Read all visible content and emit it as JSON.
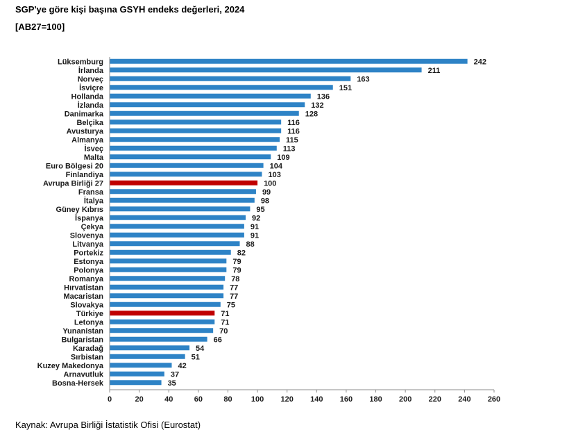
{
  "header": {
    "title": "SGP'ye göre kişi başına GSYH endeks değerleri, 2024",
    "subtitle": "[AB27=100]"
  },
  "footer": {
    "source": "Kaynak: Avrupa Birliği İstatistik Ofisi (Eurostat)"
  },
  "chart_data": {
    "type": "bar",
    "orientation": "horizontal",
    "title": "SGP'ye göre kişi başına GSYH endeks değerleri, 2024",
    "subtitle": "[AB27=100]",
    "categories": [
      "Lüksemburg",
      "İrlanda",
      "Norveç",
      "İsviçre",
      "Hollanda",
      "İzlanda",
      "Danimarka",
      "Belçika",
      "Avusturya",
      "Almanya",
      "İsveç",
      "Malta",
      "Euro Bölgesi 20",
      "Finlandiya",
      "Avrupa Birliği 27",
      "Fransa",
      "İtalya",
      "Güney Kıbrıs",
      "İspanya",
      "Çekya",
      "Slovenya",
      "Litvanya",
      "Portekiz",
      "Estonya",
      "Polonya",
      "Romanya",
      "Hırvatistan",
      "Macaristan",
      "Slovakya",
      "Türkiye",
      "Letonya",
      "Yunanistan",
      "Bulgaristan",
      "Karadağ",
      "Sırbistan",
      "Kuzey Makedonya",
      "Arnavutluk",
      "Bosna-Hersek"
    ],
    "values": [
      242,
      211,
      163,
      151,
      136,
      132,
      128,
      116,
      116,
      115,
      113,
      109,
      104,
      103,
      100,
      99,
      98,
      95,
      92,
      91,
      91,
      88,
      82,
      79,
      79,
      78,
      77,
      77,
      75,
      71,
      71,
      70,
      66,
      54,
      51,
      42,
      37,
      35
    ],
    "highlighted": [
      "Avrupa Birliği 27",
      "Türkiye"
    ],
    "xlim": [
      0,
      260
    ],
    "xticks": [
      0,
      20,
      40,
      60,
      80,
      100,
      120,
      140,
      160,
      180,
      200,
      220,
      240,
      260
    ],
    "grid": false,
    "colors": {
      "bar": "#2e83c6",
      "highlight": "#c00000",
      "axis": "#8c8c8c"
    }
  }
}
